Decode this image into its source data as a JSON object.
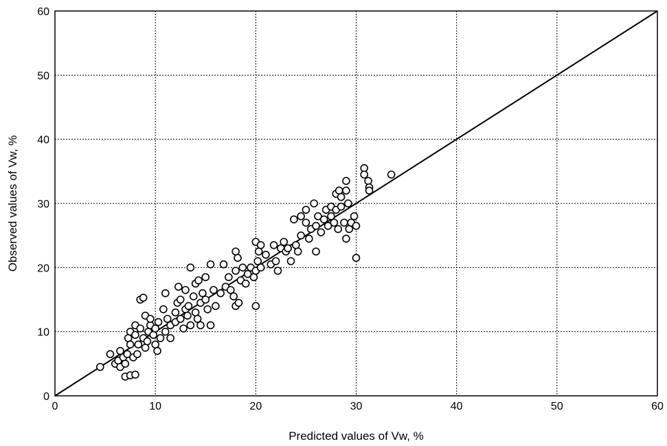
{
  "chart_data": {
    "type": "scatter",
    "xlabel": "Predicted values of Vw, %",
    "ylabel": "Observed values of Vw, %",
    "xlim": [
      0,
      60
    ],
    "ylim": [
      0,
      60
    ],
    "x_ticks": [
      "0",
      "10",
      "20",
      "30",
      "40",
      "50",
      "60"
    ],
    "y_ticks": [
      "0",
      "10",
      "20",
      "30",
      "40",
      "50",
      "60"
    ],
    "grid": true,
    "reference_line": [
      [
        0,
        0
      ],
      [
        60,
        60
      ]
    ],
    "colors": {
      "marker_fill": "#ffffff",
      "marker_stroke": "#000000",
      "line": "#000000"
    },
    "points": [
      [
        4.5,
        4.5
      ],
      [
        5.5,
        6.5
      ],
      [
        6.0,
        5.0
      ],
      [
        6.3,
        5.5
      ],
      [
        6.5,
        4.5
      ],
      [
        6.5,
        7.0
      ],
      [
        6.8,
        6.0
      ],
      [
        7.0,
        3.0
      ],
      [
        7.0,
        5.0
      ],
      [
        7.2,
        6.5
      ],
      [
        7.3,
        9.0
      ],
      [
        7.5,
        10.0
      ],
      [
        7.5,
        3.2
      ],
      [
        7.5,
        8.0
      ],
      [
        7.8,
        6.0
      ],
      [
        8.0,
        3.3
      ],
      [
        8.0,
        9.5
      ],
      [
        8.0,
        11.0
      ],
      [
        8.2,
        6.5
      ],
      [
        8.3,
        8.0
      ],
      [
        8.5,
        15.0
      ],
      [
        8.5,
        10.5
      ],
      [
        8.8,
        9.0
      ],
      [
        8.8,
        15.3
      ],
      [
        9.0,
        7.5
      ],
      [
        9.0,
        12.5
      ],
      [
        9.2,
        8.5
      ],
      [
        9.3,
        10.0
      ],
      [
        9.5,
        11.0
      ],
      [
        9.5,
        12.0
      ],
      [
        9.8,
        9.5
      ],
      [
        10.0,
        8.0
      ],
      [
        10.0,
        10.5
      ],
      [
        10.2,
        7.0
      ],
      [
        10.3,
        11.5
      ],
      [
        10.5,
        9.0
      ],
      [
        10.8,
        13.5
      ],
      [
        11.0,
        10.0
      ],
      [
        11.0,
        16.0
      ],
      [
        11.2,
        12.0
      ],
      [
        11.5,
        9.0
      ],
      [
        11.5,
        11.0
      ],
      [
        12.0,
        13.0
      ],
      [
        12.0,
        11.5
      ],
      [
        12.2,
        14.5
      ],
      [
        12.3,
        17.0
      ],
      [
        12.5,
        12.0
      ],
      [
        12.5,
        15.0
      ],
      [
        12.8,
        10.5
      ],
      [
        13.0,
        13.5
      ],
      [
        13.0,
        16.5
      ],
      [
        13.2,
        12.5
      ],
      [
        13.3,
        14.0
      ],
      [
        13.5,
        20.0
      ],
      [
        13.5,
        11.0
      ],
      [
        13.8,
        15.5
      ],
      [
        14.0,
        13.0
      ],
      [
        14.0,
        17.5
      ],
      [
        14.2,
        12.0
      ],
      [
        14.3,
        18.0
      ],
      [
        14.5,
        14.5
      ],
      [
        14.5,
        11.0
      ],
      [
        14.7,
        16.0
      ],
      [
        15.0,
        18.5
      ],
      [
        15.0,
        15.0
      ],
      [
        15.2,
        13.5
      ],
      [
        15.5,
        20.5
      ],
      [
        15.5,
        11.0
      ],
      [
        15.8,
        16.5
      ],
      [
        16.0,
        14.0
      ],
      [
        16.5,
        16.0
      ],
      [
        16.8,
        20.5
      ],
      [
        17.0,
        17.0
      ],
      [
        17.3,
        18.5
      ],
      [
        17.5,
        16.5
      ],
      [
        17.8,
        15.5
      ],
      [
        18.0,
        14.0
      ],
      [
        18.0,
        22.5
      ],
      [
        18.0,
        19.5
      ],
      [
        18.2,
        21.5
      ],
      [
        18.3,
        14.5
      ],
      [
        18.5,
        18.0
      ],
      [
        18.7,
        20.0
      ],
      [
        19.0,
        17.5
      ],
      [
        19.2,
        19.0
      ],
      [
        19.5,
        20.0
      ],
      [
        19.8,
        18.5
      ],
      [
        20.0,
        24.0
      ],
      [
        20.0,
        14.0
      ],
      [
        20.0,
        19.5
      ],
      [
        20.2,
        21.0
      ],
      [
        20.3,
        22.5
      ],
      [
        20.5,
        20.0
      ],
      [
        20.5,
        23.5
      ],
      [
        21.0,
        22.0
      ],
      [
        21.5,
        20.5
      ],
      [
        21.8,
        23.5
      ],
      [
        22.0,
        21.0
      ],
      [
        22.2,
        19.5
      ],
      [
        22.5,
        23.0
      ],
      [
        22.8,
        24.0
      ],
      [
        23.0,
        22.5
      ],
      [
        23.2,
        23.0
      ],
      [
        23.5,
        21.0
      ],
      [
        23.8,
        27.5
      ],
      [
        24.0,
        23.5
      ],
      [
        24.2,
        22.5
      ],
      [
        24.5,
        25.0
      ],
      [
        24.5,
        28.0
      ],
      [
        25.0,
        27.0
      ],
      [
        25.0,
        29.0
      ],
      [
        25.3,
        24.5
      ],
      [
        25.5,
        26.0
      ],
      [
        25.8,
        30.0
      ],
      [
        26.0,
        22.5
      ],
      [
        26.0,
        26.5
      ],
      [
        26.2,
        28.0
      ],
      [
        26.5,
        25.5
      ],
      [
        26.8,
        27.5
      ],
      [
        27.0,
        29.0
      ],
      [
        27.2,
        26.5
      ],
      [
        27.5,
        29.5
      ],
      [
        27.5,
        28.0
      ],
      [
        27.8,
        27.0
      ],
      [
        28.0,
        31.5
      ],
      [
        28.0,
        29.0
      ],
      [
        28.2,
        26.0
      ],
      [
        28.3,
        32.0
      ],
      [
        28.5,
        29.5
      ],
      [
        28.5,
        31.0
      ],
      [
        28.8,
        27.0
      ],
      [
        29.0,
        24.5
      ],
      [
        29.0,
        33.5
      ],
      [
        29.0,
        32.0
      ],
      [
        29.2,
        30.0
      ],
      [
        29.3,
        26.0
      ],
      [
        29.5,
        27.0
      ],
      [
        29.8,
        28.0
      ],
      [
        30.0,
        21.5
      ],
      [
        30.0,
        26.5
      ],
      [
        30.8,
        35.5
      ],
      [
        30.8,
        34.5
      ],
      [
        31.2,
        33.5
      ],
      [
        31.3,
        32.5
      ],
      [
        31.3,
        32.0
      ],
      [
        33.5,
        34.5
      ]
    ]
  }
}
